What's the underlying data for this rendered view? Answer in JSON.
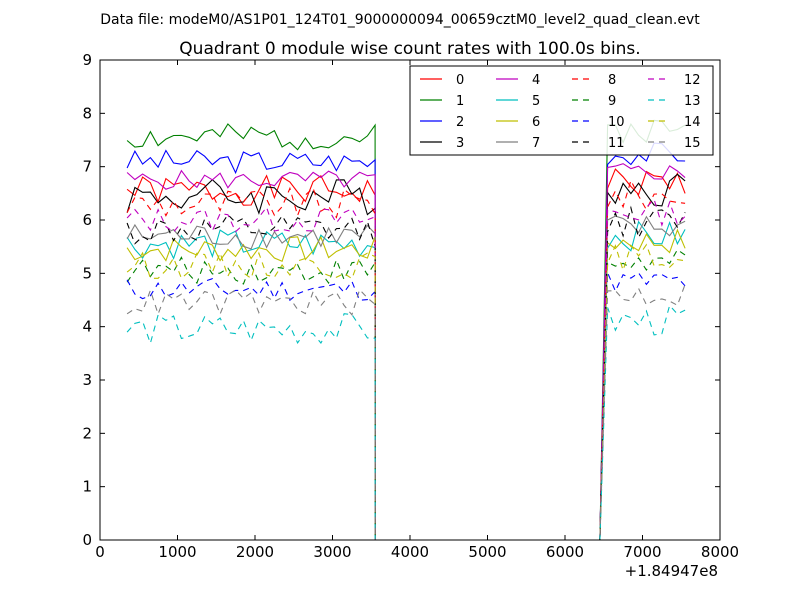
{
  "chart_data": {
    "type": "line",
    "suptitle": "Data file: modeM0/AS1P01_124T01_9000000094_00659cztM0_level2_quad_clean.evt",
    "title": "Quadrant 0 module wise count rates with 100.0s bins.",
    "xlabel": "",
    "ylabel": "",
    "x_offset_label": "+1.84947e8",
    "xlim": [
      0,
      8000
    ],
    "ylim": [
      0,
      9
    ],
    "xticks": [
      "0",
      "1000",
      "2000",
      "3000",
      "4000",
      "5000",
      "6000",
      "7000",
      "8000"
    ],
    "yticks": [
      "0",
      "1",
      "2",
      "3",
      "4",
      "5",
      "6",
      "7",
      "8",
      "9"
    ],
    "grid": false,
    "legend_placement": "top-right",
    "legend_columns": 4,
    "series": [
      {
        "name": "0",
        "color": "#ff0000",
        "style": "solid",
        "base": 6.55,
        "amp": 0.28,
        "seed": 1
      },
      {
        "name": "1",
        "color": "#008000",
        "style": "solid",
        "base": 7.55,
        "amp": 0.25,
        "seed": 2
      },
      {
        "name": "2",
        "color": "#0000ff",
        "style": "solid",
        "base": 7.1,
        "amp": 0.22,
        "seed": 3
      },
      {
        "name": "3",
        "color": "#000000",
        "style": "solid",
        "base": 6.45,
        "amp": 0.35,
        "seed": 4
      },
      {
        "name": "4",
        "color": "#bf00bf",
        "style": "solid",
        "base": 6.75,
        "amp": 0.18,
        "seed": 5
      },
      {
        "name": "5",
        "color": "#00bfbf",
        "style": "solid",
        "base": 5.55,
        "amp": 0.28,
        "seed": 6
      },
      {
        "name": "6",
        "color": "#bfbf00",
        "style": "solid",
        "base": 5.45,
        "amp": 0.25,
        "seed": 7
      },
      {
        "name": "7",
        "color": "#808080",
        "style": "solid",
        "base": 5.7,
        "amp": 0.25,
        "seed": 8
      },
      {
        "name": "8",
        "color": "#ff0000",
        "style": "dashed",
        "base": 6.3,
        "amp": 0.3,
        "seed": 9
      },
      {
        "name": "9",
        "color": "#008000",
        "style": "dashed",
        "base": 5.05,
        "amp": 0.25,
        "seed": 10
      },
      {
        "name": "10",
        "color": "#0000ff",
        "style": "dashed",
        "base": 4.7,
        "amp": 0.22,
        "seed": 11
      },
      {
        "name": "11",
        "color": "#000000",
        "style": "dashed",
        "base": 5.8,
        "amp": 0.3,
        "seed": 12
      },
      {
        "name": "12",
        "color": "#bf00bf",
        "style": "dashed",
        "base": 6.0,
        "amp": 0.25,
        "seed": 13
      },
      {
        "name": "13",
        "color": "#00bfbf",
        "style": "dashed",
        "base": 3.95,
        "amp": 0.3,
        "seed": 14
      },
      {
        "name": "14",
        "color": "#bfbf00",
        "style": "dashed",
        "base": 5.15,
        "amp": 0.25,
        "seed": 15
      },
      {
        "name": "15",
        "color": "#808080",
        "style": "dashed",
        "base": 4.45,
        "amp": 0.25,
        "seed": 16
      }
    ],
    "segments": {
      "active1": {
        "x_start": 350,
        "x_step": 100,
        "count": 33
      },
      "gap": {
        "x_start": 3550,
        "x_end": 6450,
        "value": 0
      },
      "active2": {
        "x_start": 6550,
        "x_step": 100,
        "count": 11
      }
    }
  }
}
